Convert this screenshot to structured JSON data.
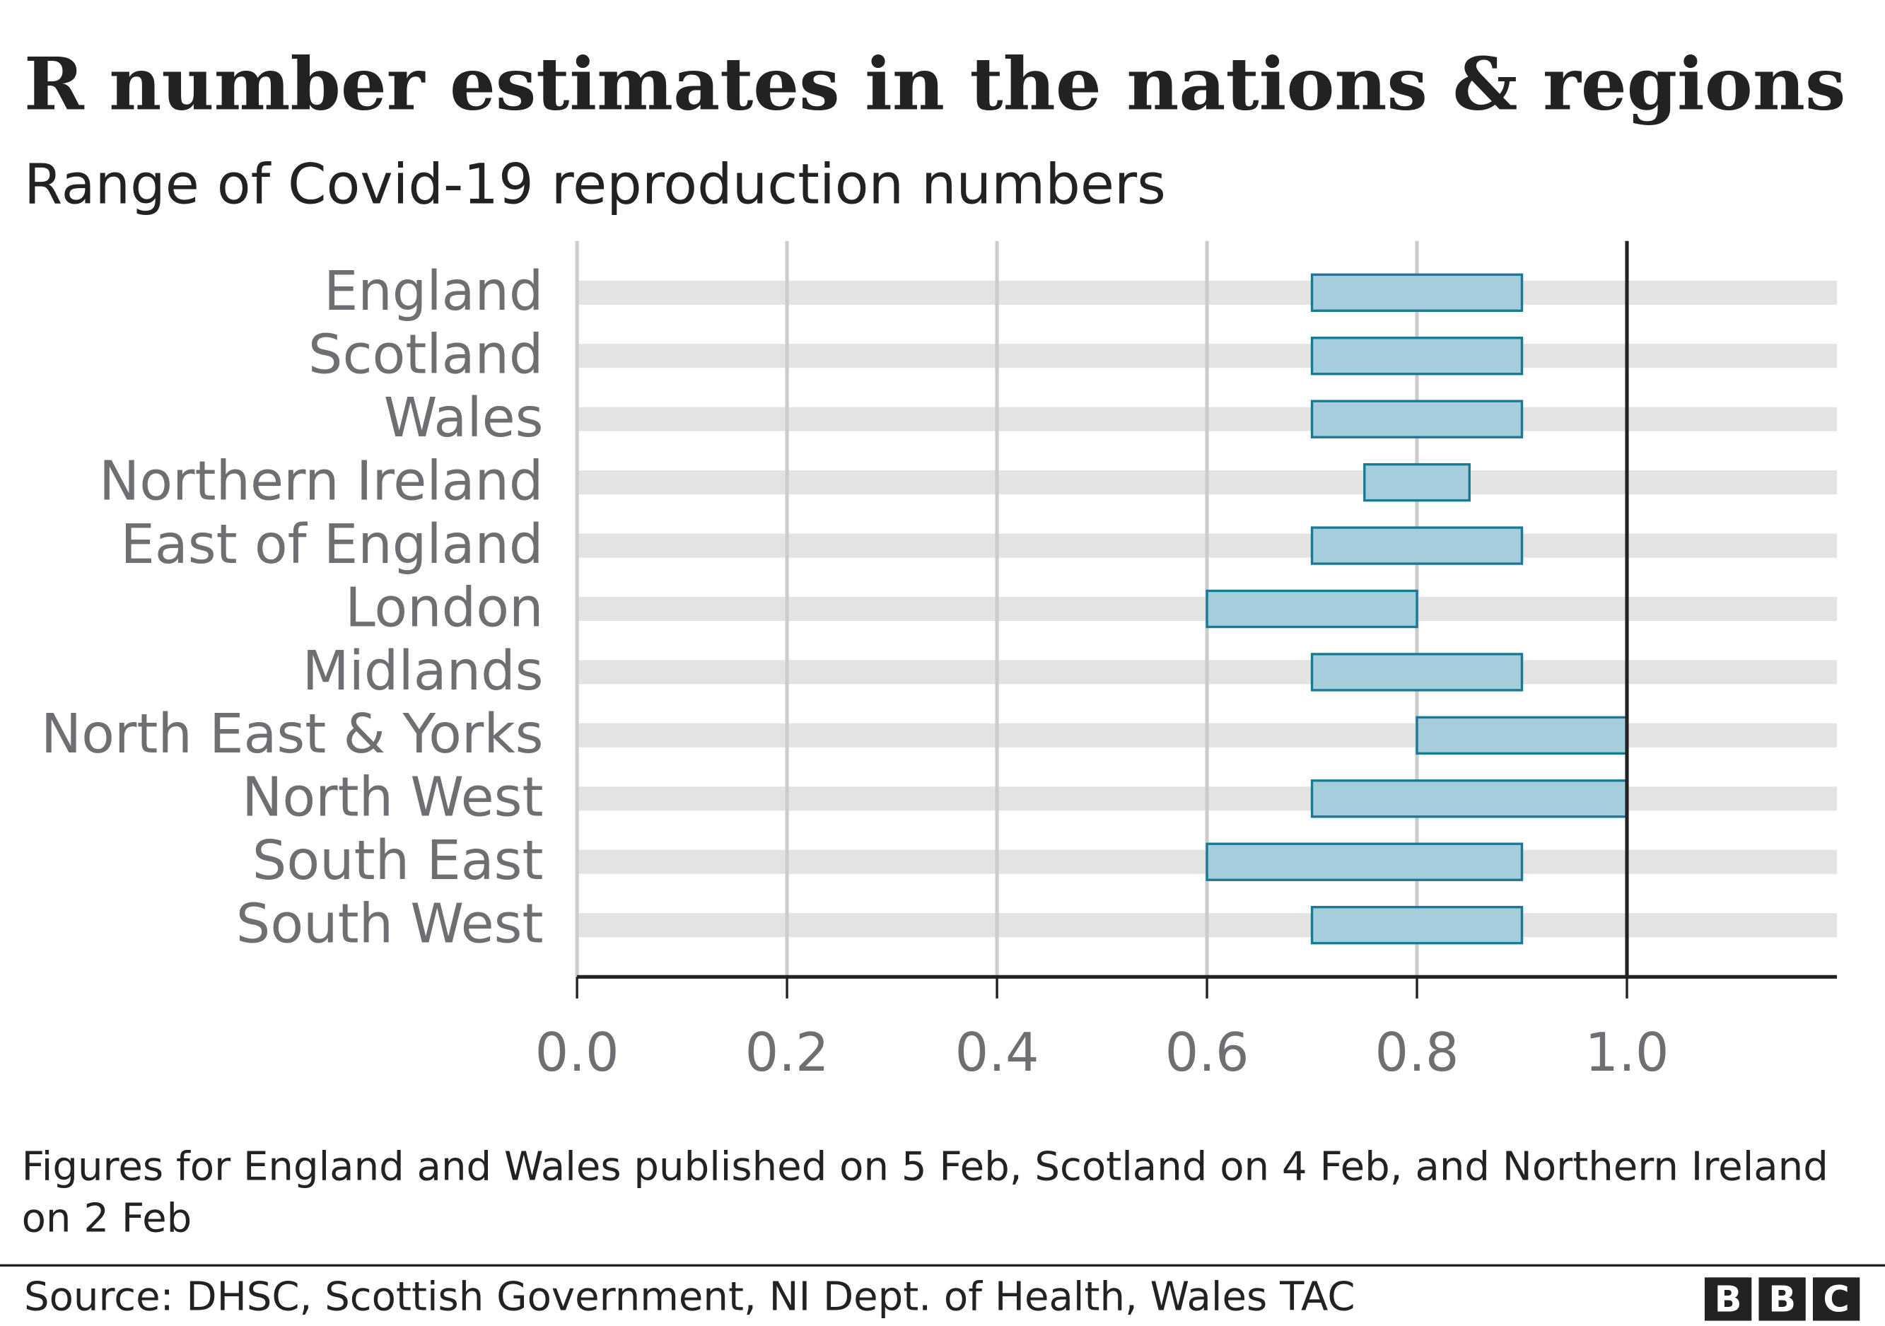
{
  "chart_data": {
    "type": "range-bar",
    "title": "R number estimates in the nations & regions",
    "subtitle": "Range of Covid-19 reproduction numbers",
    "categories": [
      "England",
      "Scotland",
      "Wales",
      "Northern Ireland",
      "East of England",
      "London",
      "Midlands",
      "North East & Yorks",
      "North West",
      "South East",
      "South West"
    ],
    "low": [
      0.7,
      0.7,
      0.7,
      0.75,
      0.7,
      0.6,
      0.7,
      0.8,
      0.7,
      0.6,
      0.7
    ],
    "high": [
      0.9,
      0.9,
      0.9,
      0.85,
      0.9,
      0.8,
      0.9,
      1.0,
      1.0,
      0.9,
      0.9
    ],
    "color": "#a5cddb",
    "edge_color": "#1a7a96",
    "xlim": [
      0,
      1.2
    ],
    "xticks": [
      {
        "value": 0,
        "label": "0.0"
      },
      0.2,
      0.4,
      0.6,
      0.8,
      {
        "value": 1,
        "label": "1.0"
      }
    ],
    "reference_line": 1,
    "grid": true,
    "footnote": "Figures for England and Wales published on 5 Feb, Scotland on 4 Feb, and Northern Ireland on 2 Feb",
    "source": "Source: DHSC, Scottish Government, NI Dept. of Health, Wales TAC",
    "logo": [
      "B",
      "B",
      "C"
    ]
  }
}
